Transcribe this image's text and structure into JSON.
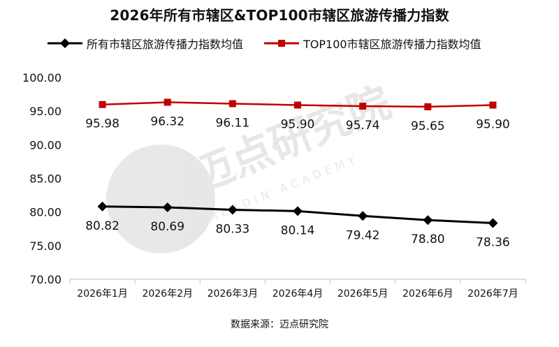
{
  "title": "2026年所有市辖区&TOP100市辖区旅游传播力指数",
  "source": "数据来源：迈点研究院",
  "watermark": {
    "main": "迈点研究院",
    "sub": "MEADIN ACADEMY"
  },
  "colors": {
    "series_black": "#000000",
    "series_red": "#c00000",
    "axis": "#bfbfbf"
  },
  "chart_data": {
    "type": "line",
    "categories": [
      "2026年1月",
      "2026年2月",
      "2026年3月",
      "2026年4月",
      "2026年5月",
      "2026年6月",
      "2026年7月"
    ],
    "series": [
      {
        "name": "所有市辖区旅游传播力指数均值",
        "color": "#000000",
        "marker": "diamond",
        "values": [
          80.82,
          80.69,
          80.33,
          80.14,
          79.42,
          78.8,
          78.36
        ],
        "labels": [
          "80.82",
          "80.69",
          "80.33",
          "80.14",
          "79.42",
          "78.80",
          "78.36"
        ]
      },
      {
        "name": "TOP100市辖区旅游传播力指数均值",
        "color": "#c00000",
        "marker": "square",
        "values": [
          95.98,
          96.32,
          96.11,
          95.9,
          95.74,
          95.65,
          95.9
        ],
        "labels": [
          "95.98",
          "96.32",
          "96.11",
          "95.90",
          "95.74",
          "95.65",
          "95.90"
        ]
      }
    ],
    "ylim": [
      70,
      100
    ],
    "yticks": [
      "70.00",
      "75.00",
      "80.00",
      "85.00",
      "90.00",
      "95.00",
      "100.00"
    ],
    "ytick_values": [
      70,
      75,
      80,
      85,
      90,
      95,
      100
    ],
    "grid": false,
    "legend_position": "top"
  }
}
